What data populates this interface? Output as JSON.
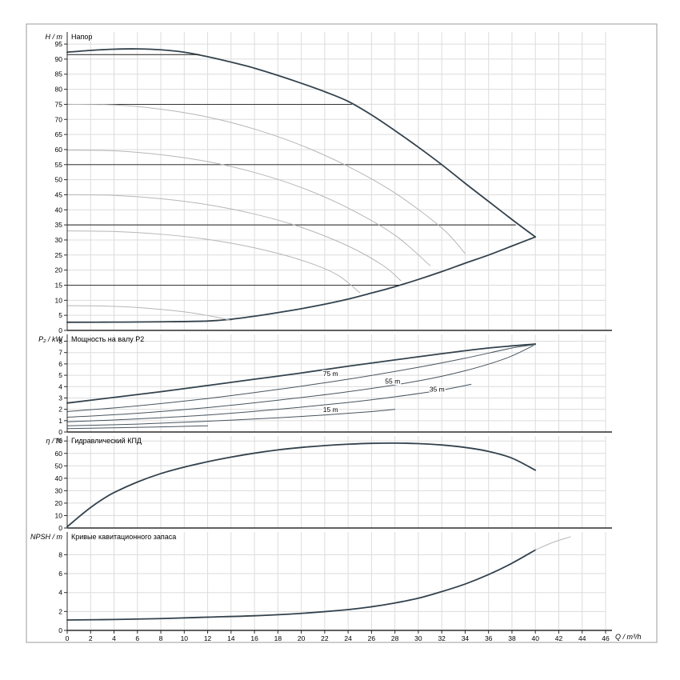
{
  "colors": {
    "curve_dark": "#33424d",
    "curve_thin": "#47555f",
    "control": "#1d1d1d",
    "curve_gray": "#b6b6b6",
    "grid": "#dcdcdc",
    "axis": "#2b2b2b",
    "frame": "#9b9b9b",
    "text": "#000000"
  },
  "x_axis": {
    "label": "Q / m³/h",
    "min": 0,
    "max": 46,
    "ticks": [
      0,
      2,
      4,
      6,
      8,
      10,
      12,
      14,
      16,
      18,
      20,
      22,
      24,
      26,
      28,
      30,
      32,
      34,
      36,
      38,
      40,
      42,
      44,
      46
    ]
  },
  "chart_data": [
    {
      "id": "head",
      "type": "line",
      "title": "Напор",
      "ylabel": "H / m",
      "ylim": [
        0,
        99
      ],
      "yticks": [
        0,
        5,
        10,
        15,
        20,
        25,
        30,
        35,
        40,
        45,
        50,
        55,
        60,
        65,
        70,
        75,
        80,
        85,
        90,
        95
      ],
      "series": [
        {
          "name": "max-speed-curve",
          "style": "thick",
          "points": [
            [
              0,
              92.3
            ],
            [
              2,
              92.9
            ],
            [
              4,
              93.3
            ],
            [
              6,
              93.4
            ],
            [
              8,
              93.1
            ],
            [
              10,
              92.3
            ],
            [
              12,
              90.8
            ],
            [
              14,
              89.0
            ],
            [
              16,
              87.0
            ],
            [
              18,
              84.6
            ],
            [
              20,
              82.0
            ],
            [
              22,
              79.2
            ],
            [
              24,
              76.0
            ],
            [
              26,
              71.5
            ],
            [
              28,
              66.3
            ],
            [
              30,
              60.8
            ],
            [
              32,
              55.0
            ],
            [
              34,
              48.8
            ],
            [
              36,
              42.8
            ],
            [
              38,
              36.8
            ],
            [
              40,
              31.0
            ]
          ]
        },
        {
          "name": "min-speed-curve",
          "style": "thick",
          "points": [
            [
              0,
              2.7
            ],
            [
              4,
              2.75
            ],
            [
              8,
              2.85
            ],
            [
              12,
              3.1
            ],
            [
              14,
              3.7
            ],
            [
              16,
              4.7
            ],
            [
              18,
              5.9
            ],
            [
              20,
              7.2
            ],
            [
              22,
              8.7
            ],
            [
              24,
              10.4
            ],
            [
              26,
              12.4
            ],
            [
              28,
              14.5
            ],
            [
              30,
              16.9
            ],
            [
              32,
              19.5
            ],
            [
              34,
              22.3
            ],
            [
              36,
              25.0
            ],
            [
              38,
              28.0
            ],
            [
              40,
              31.0
            ]
          ]
        },
        {
          "name": "control-line-92m",
          "style": "control",
          "points": [
            [
              0,
              91.5
            ],
            [
              11.3,
              91.5
            ]
          ]
        },
        {
          "name": "control-line-75m",
          "style": "control",
          "points": [
            [
              0,
              75
            ],
            [
              24.3,
              75
            ]
          ]
        },
        {
          "name": "control-line-55m",
          "style": "control",
          "points": [
            [
              0,
              55
            ],
            [
              31.9,
              55
            ]
          ]
        },
        {
          "name": "control-line-35m",
          "style": "control",
          "points": [
            [
              0,
              35
            ],
            [
              38.3,
              35
            ]
          ]
        },
        {
          "name": "control-line-15m",
          "style": "control",
          "points": [
            [
              0,
              15
            ],
            [
              28.3,
              15
            ]
          ]
        },
        {
          "name": "speed-curve-75",
          "style": "gray",
          "points": [
            [
              0,
              75
            ],
            [
              4,
              74.8
            ],
            [
              8,
              73.4
            ],
            [
              12,
              70.8
            ],
            [
              16,
              66.8
            ],
            [
              20,
              61.4
            ],
            [
              24,
              54.4
            ],
            [
              28,
              45.6
            ],
            [
              32,
              34.0
            ],
            [
              34,
              25.5
            ]
          ]
        },
        {
          "name": "speed-curve-60",
          "style": "gray",
          "points": [
            [
              0,
              59.8
            ],
            [
              4,
              59.6
            ],
            [
              8,
              58.3
            ],
            [
              12,
              56.0
            ],
            [
              16,
              52.4
            ],
            [
              20,
              47.4
            ],
            [
              24,
              40.6
            ],
            [
              28,
              31.6
            ],
            [
              31,
              21.5
            ]
          ]
        },
        {
          "name": "speed-curve-45",
          "style": "gray",
          "points": [
            [
              0,
              45
            ],
            [
              4,
              44.8
            ],
            [
              8,
              43.7
            ],
            [
              12,
              41.7
            ],
            [
              16,
              38.6
            ],
            [
              20,
              34.2
            ],
            [
              24,
              28.0
            ],
            [
              27,
              21.5
            ],
            [
              28.5,
              16.5
            ]
          ]
        },
        {
          "name": "speed-curve-33",
          "style": "gray",
          "points": [
            [
              0,
              33
            ],
            [
              4,
              32.8
            ],
            [
              8,
              31.9
            ],
            [
              12,
              30.2
            ],
            [
              16,
              27.4
            ],
            [
              20,
              23.3
            ],
            [
              23,
              18.6
            ],
            [
              25,
              12.5
            ]
          ]
        },
        {
          "name": "speed-curve-8",
          "style": "gray",
          "points": [
            [
              0,
              8.2
            ],
            [
              3,
              8.1
            ],
            [
              6,
              7.6
            ],
            [
              9,
              6.6
            ],
            [
              11,
              5.6
            ],
            [
              13,
              4.2
            ],
            [
              14,
              3.3
            ]
          ]
        }
      ],
      "labels": []
    },
    {
      "id": "power",
      "type": "line",
      "title": "Мощность на валу P2",
      "ylabel": "P₂ / kW",
      "ylim": [
        0,
        8.6
      ],
      "yticks": [
        0,
        1,
        2,
        3,
        4,
        5,
        6,
        7,
        8
      ],
      "series": [
        {
          "name": "max-speed-power",
          "style": "thick",
          "points": [
            [
              0,
              2.55
            ],
            [
              4,
              3.05
            ],
            [
              8,
              3.55
            ],
            [
              12,
              4.1
            ],
            [
              16,
              4.65
            ],
            [
              20,
              5.2
            ],
            [
              24,
              5.8
            ],
            [
              28,
              6.35
            ],
            [
              32,
              6.9
            ],
            [
              36,
              7.4
            ],
            [
              40,
              7.75
            ]
          ]
        },
        {
          "name": "power-curve-75m",
          "style": "thin",
          "points": [
            [
              0,
              1.8
            ],
            [
              6,
              2.3
            ],
            [
              12,
              2.95
            ],
            [
              18,
              3.75
            ],
            [
              24,
              4.65
            ],
            [
              30,
              5.7
            ],
            [
              34,
              6.5
            ],
            [
              38,
              7.4
            ],
            [
              40,
              7.7
            ]
          ]
        },
        {
          "name": "power-curve-55m",
          "style": "thin",
          "points": [
            [
              0,
              1.3
            ],
            [
              6,
              1.65
            ],
            [
              12,
              2.15
            ],
            [
              18,
              2.8
            ],
            [
              24,
              3.55
            ],
            [
              30,
              4.5
            ],
            [
              34,
              5.4
            ],
            [
              37.5,
              6.5
            ],
            [
              39.8,
              7.6
            ]
          ]
        },
        {
          "name": "power-curve-35m",
          "style": "thin",
          "points": [
            [
              0,
              0.9
            ],
            [
              6,
              1.15
            ],
            [
              12,
              1.5
            ],
            [
              18,
              2.0
            ],
            [
              24,
              2.6
            ],
            [
              28,
              3.1
            ],
            [
              32,
              3.7
            ],
            [
              34.5,
              4.2
            ]
          ]
        },
        {
          "name": "power-curve-15m",
          "style": "thin",
          "points": [
            [
              0,
              0.55
            ],
            [
              6,
              0.7
            ],
            [
              12,
              0.95
            ],
            [
              18,
              1.25
            ],
            [
              22,
              1.5
            ],
            [
              26,
              1.8
            ],
            [
              28,
              2.0
            ]
          ]
        },
        {
          "name": "min-speed-power",
          "style": "thin",
          "points": [
            [
              0,
              0.3
            ],
            [
              4,
              0.37
            ],
            [
              8,
              0.45
            ],
            [
              12,
              0.55
            ]
          ]
        }
      ],
      "labels": [
        {
          "text": "75 m",
          "q": 22.5,
          "v": 4.95
        },
        {
          "text": "55 m",
          "q": 27.8,
          "v": 4.25
        },
        {
          "text": "35 m",
          "q": 31.6,
          "v": 3.55
        },
        {
          "text": "15 m",
          "q": 22.5,
          "v": 1.75
        }
      ]
    },
    {
      "id": "efficiency",
      "type": "line",
      "title": "Гидравлический КПД",
      "ylabel": "η / %",
      "ylim": [
        0,
        74
      ],
      "yticks": [
        0,
        10,
        20,
        30,
        40,
        50,
        60,
        70
      ],
      "series": [
        {
          "name": "efficiency-curve",
          "style": "thick",
          "points": [
            [
              0,
              1
            ],
            [
              1,
              9
            ],
            [
              2,
              16.5
            ],
            [
              3,
              23
            ],
            [
              4,
              28.5
            ],
            [
              6,
              37
            ],
            [
              8,
              43.8
            ],
            [
              10,
              49
            ],
            [
              12,
              53.3
            ],
            [
              14,
              57
            ],
            [
              16,
              60.2
            ],
            [
              18,
              62.8
            ],
            [
              20,
              64.8
            ],
            [
              22,
              66.3
            ],
            [
              24,
              67.4
            ],
            [
              26,
              68.1
            ],
            [
              28,
              68.3
            ],
            [
              30,
              67.9
            ],
            [
              32,
              66.8
            ],
            [
              34,
              64.8
            ],
            [
              36,
              61.6
            ],
            [
              38,
              56.2
            ],
            [
              40,
              46.5
            ]
          ]
        }
      ],
      "labels": []
    },
    {
      "id": "npsh",
      "type": "line",
      "title": "Кривые кавитационного запаса",
      "ylabel": "NPSH / m",
      "ylim": [
        0,
        10.4
      ],
      "yticks": [
        0,
        2,
        4,
        6,
        8
      ],
      "series": [
        {
          "name": "npsh-curve",
          "style": "thick",
          "points": [
            [
              0,
              1.1
            ],
            [
              4,
              1.15
            ],
            [
              8,
              1.25
            ],
            [
              12,
              1.4
            ],
            [
              16,
              1.55
            ],
            [
              20,
              1.8
            ],
            [
              24,
              2.2
            ],
            [
              26,
              2.5
            ],
            [
              28,
              2.9
            ],
            [
              30,
              3.4
            ],
            [
              32,
              4.1
            ],
            [
              34,
              4.9
            ],
            [
              36,
              5.9
            ],
            [
              38,
              7.1
            ],
            [
              40,
              8.5
            ]
          ]
        },
        {
          "name": "npsh-extension",
          "style": "gray",
          "points": [
            [
              40,
              8.5
            ],
            [
              41.5,
              9.3
            ],
            [
              43,
              9.9
            ]
          ]
        }
      ],
      "labels": []
    }
  ]
}
